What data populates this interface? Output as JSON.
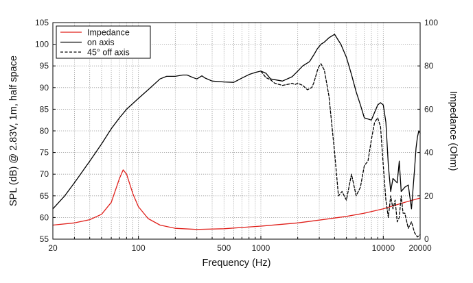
{
  "chart_data": {
    "type": "line",
    "xlabel": "Frequency (Hz)",
    "ylabel_left": "SPL (dB) @ 2.83V, 1m, half space",
    "ylabel_right": "Impedance (Ohm)",
    "x_scale": "log",
    "xlim": [
      20,
      20000
    ],
    "ylim_left": [
      55,
      105
    ],
    "ylim_right": [
      0,
      100
    ],
    "x_tick_labels": [
      "20",
      "100",
      "500",
      "1000",
      "10000",
      "20000"
    ],
    "y_left_tick_labels": [
      "55",
      "60",
      "65",
      "70",
      "75",
      "80",
      "85",
      "90",
      "95",
      "100",
      "105"
    ],
    "y_right_tick_labels": [
      "0",
      "20",
      "40",
      "60",
      "80",
      "100"
    ],
    "grid": true,
    "legend_position": "top-left",
    "colors": {
      "impedance": "#e0201b",
      "on_axis": "#000000",
      "off_axis": "#000000"
    },
    "series": [
      {
        "name": "Impedance",
        "axis": "right",
        "style": "solid",
        "x": [
          20,
          30,
          40,
          50,
          60,
          70,
          75,
          80,
          90,
          100,
          120,
          150,
          200,
          300,
          500,
          1000,
          2000,
          3000,
          5000,
          7000,
          10000,
          15000,
          20000
        ],
        "y": [
          6.5,
          7.5,
          9,
          11.5,
          17,
          28,
          32,
          30,
          21,
          15,
          9.5,
          6.5,
          5,
          4.5,
          4.8,
          6,
          7.5,
          8.8,
          10.5,
          12,
          14,
          17,
          19
        ]
      },
      {
        "name": "on axis",
        "axis": "left",
        "style": "solid",
        "x": [
          20,
          25,
          30,
          40,
          50,
          60,
          70,
          80,
          100,
          120,
          150,
          170,
          200,
          230,
          250,
          280,
          300,
          330,
          350,
          400,
          500,
          600,
          700,
          800,
          900,
          1000,
          1100,
          1200,
          1500,
          1800,
          2000,
          2200,
          2500,
          2700,
          2900,
          3100,
          3300,
          3600,
          4000,
          4500,
          5000,
          5500,
          6000,
          6500,
          7000,
          8000,
          9000,
          9500,
          10000,
          10500,
          11000,
          11500,
          12000,
          13000,
          13500,
          14000,
          15000,
          16000,
          17000,
          18000,
          18500,
          19000,
          19500,
          20000
        ],
        "y": [
          62,
          65,
          68,
          73,
          77,
          80.5,
          83,
          85,
          87.5,
          89.5,
          92,
          92.6,
          92.6,
          92.9,
          92.9,
          92.3,
          92,
          92.7,
          92.2,
          91.5,
          91.3,
          91.2,
          92.2,
          93,
          93.5,
          93.8,
          93.3,
          92,
          91.5,
          92.5,
          93.8,
          95,
          96,
          97.5,
          99,
          100,
          100.5,
          101.5,
          102.3,
          100,
          97,
          93,
          89,
          86,
          83,
          82.5,
          86,
          86.5,
          86,
          82,
          72,
          66,
          69,
          68,
          73,
          66,
          67,
          67.5,
          62,
          71,
          76,
          78.5,
          80,
          79.5
        ]
      },
      {
        "name": "45° off axis",
        "axis": "left",
        "style": "dashed",
        "x": [
          1000,
          1100,
          1200,
          1300,
          1500,
          1700,
          1800,
          1900,
          2000,
          2200,
          2400,
          2600,
          2700,
          2800,
          2900,
          3000,
          3100,
          3300,
          3600,
          4000,
          4300,
          4600,
          5000,
          5500,
          6000,
          6500,
          7000,
          7500,
          8000,
          8500,
          9000,
          9500,
          10000,
          10500,
          11000,
          11500,
          12000,
          12500,
          13000,
          13500,
          14000,
          14500,
          15000,
          16000,
          17000,
          18000,
          19000,
          20000
        ],
        "y": [
          93.8,
          92.3,
          91.8,
          91,
          90.5,
          90.8,
          91,
          90.7,
          91,
          90.5,
          89.5,
          90,
          91,
          92.5,
          94,
          95,
          95.5,
          94,
          88,
          75,
          65,
          66,
          64,
          70,
          65,
          67,
          72,
          73,
          78,
          82,
          83,
          81,
          72,
          64,
          60,
          65,
          62,
          64,
          59,
          60,
          65,
          61,
          61,
          57.5,
          59,
          56.5,
          55.5,
          56
        ]
      }
    ]
  }
}
